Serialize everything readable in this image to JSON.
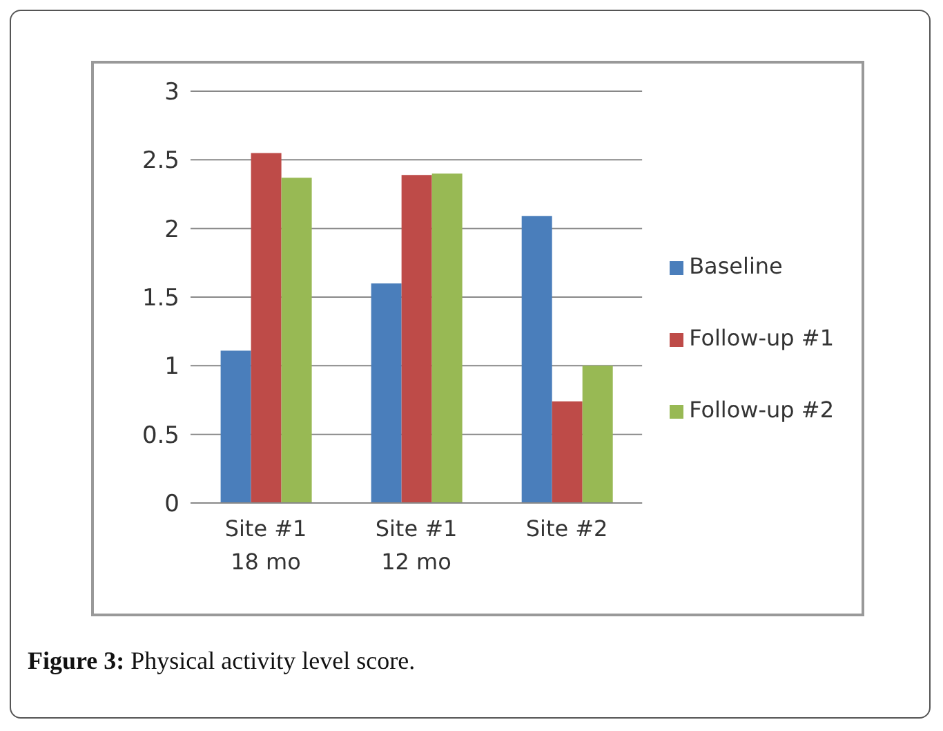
{
  "chart_data": {
    "type": "bar",
    "title": "Figure 3: Physical activity level score.",
    "categories": [
      "Site #1\n18 mo",
      "Site #1\n12 mo",
      "Site #2"
    ],
    "series": [
      {
        "name": "Baseline",
        "color": "#4a7ebb",
        "values": [
          1.11,
          1.6,
          2.09
        ]
      },
      {
        "name": "Follow-up #1",
        "color": "#be4b48",
        "values": [
          2.55,
          2.39,
          0.74
        ]
      },
      {
        "name": "Follow-up #2",
        "color": "#98b954",
        "values": [
          2.37,
          2.4,
          1.0
        ]
      }
    ],
    "ylim": [
      0,
      3
    ],
    "yticks": [
      0,
      0.5,
      1,
      1.5,
      2,
      2.5,
      3
    ],
    "grid": "y",
    "legend": "right"
  }
}
